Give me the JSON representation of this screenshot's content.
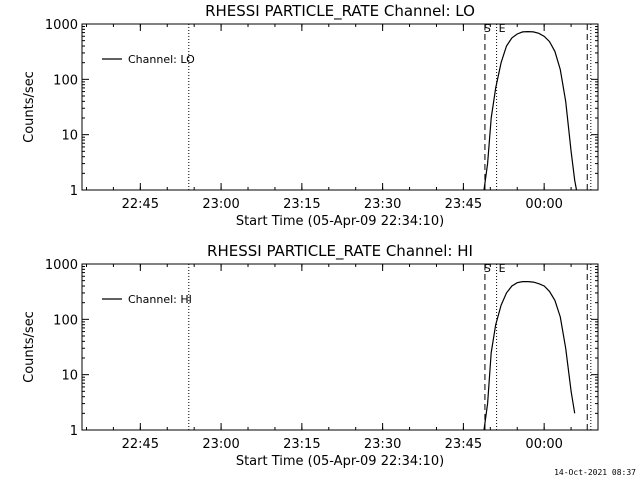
{
  "footer_text": "14-Oct-2021 08:37",
  "chart_data": [
    {
      "type": "line",
      "title": "RHESSI PARTICLE_RATE Channel: LO",
      "xlabel": "Start Time (05-Apr-09 22:34:10)",
      "ylabel": "Counts/sec",
      "yscale": "log",
      "ylim": [
        1,
        1000
      ],
      "xlim": [
        "22:34:10",
        "00:10:00"
      ],
      "x_ticks": [
        "22:45",
        "23:00",
        "23:15",
        "23:30",
        "23:45",
        "00:00"
      ],
      "y_ticks": [
        "1",
        "10",
        "100",
        "1000"
      ],
      "legend": "Channel: LO",
      "legend_position": "top-left",
      "markers": [
        "S",
        "E"
      ],
      "vlines": {
        "dotted": [
          "22:54:00",
          "23:51:10",
          "00:08:40"
        ],
        "dashed": [
          "23:49:00",
          "00:08:00"
        ]
      },
      "series": [
        {
          "name": "Channel: LO",
          "x": [
            "23:48:50",
            "23:49:30",
            "23:50:10",
            "23:51:00",
            "23:52:00",
            "23:53:00",
            "23:54:00",
            "23:55:00",
            "23:56:00",
            "23:57:00",
            "23:58:00",
            "23:59:00",
            "00:00:00",
            "00:01:00",
            "00:02:00",
            "00:03:00",
            "00:04:00",
            "00:05:00",
            "00:05:40",
            "00:06:00"
          ],
          "y": [
            1,
            3,
            20,
            70,
            200,
            400,
            560,
            660,
            720,
            730,
            720,
            680,
            600,
            480,
            320,
            150,
            40,
            5,
            1.5,
            1
          ]
        }
      ]
    },
    {
      "type": "line",
      "title": "RHESSI PARTICLE_RATE Channel: HI",
      "xlabel": "Start Time (05-Apr-09 22:34:10)",
      "ylabel": "Counts/sec",
      "yscale": "log",
      "ylim": [
        1,
        1000
      ],
      "xlim": [
        "22:34:10",
        "00:10:00"
      ],
      "x_ticks": [
        "22:45",
        "23:00",
        "23:15",
        "23:30",
        "23:45",
        "00:00"
      ],
      "y_ticks": [
        "1",
        "10",
        "100",
        "1000"
      ],
      "legend": "Channel: HI",
      "legend_position": "top-left",
      "markers": [
        "S",
        "E"
      ],
      "vlines": {
        "dotted": [
          "22:54:00",
          "23:51:10",
          "00:08:40"
        ],
        "dashed": [
          "23:49:00",
          "00:08:00"
        ]
      },
      "series": [
        {
          "name": "Channel: HI",
          "x": [
            "23:48:50",
            "23:49:30",
            "23:50:10",
            "23:51:00",
            "23:52:00",
            "23:53:00",
            "23:54:00",
            "23:55:00",
            "23:56:00",
            "23:57:00",
            "23:58:00",
            "23:59:00",
            "00:00:00",
            "00:01:00",
            "00:02:00",
            "00:03:00",
            "00:04:00",
            "00:05:00",
            "00:05:40"
          ],
          "y": [
            1,
            3,
            25,
            80,
            180,
            300,
            400,
            460,
            480,
            480,
            470,
            440,
            400,
            320,
            220,
            110,
            30,
            5,
            2
          ]
        }
      ]
    }
  ]
}
